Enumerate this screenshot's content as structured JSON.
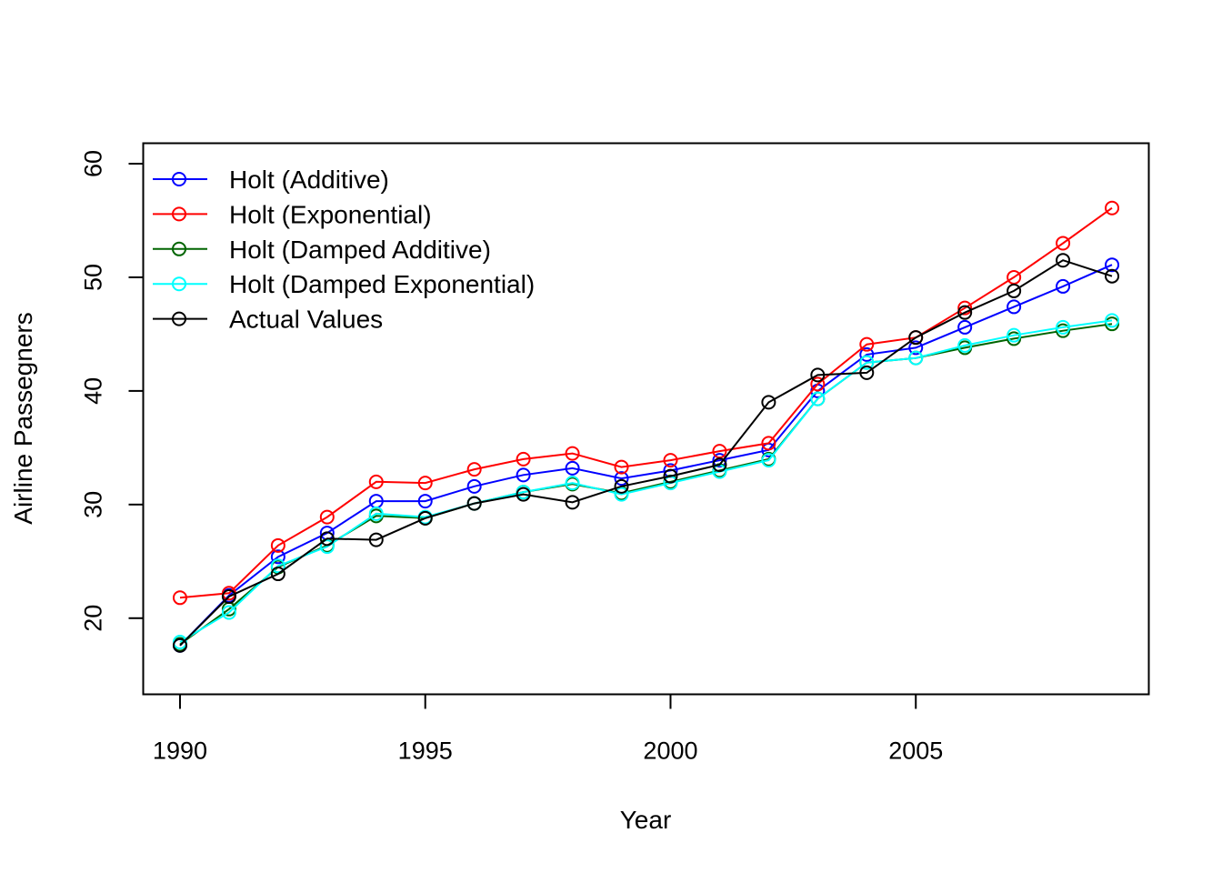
{
  "chart_data": {
    "type": "line",
    "xlabel": "Year",
    "ylabel": "Airline Passegners",
    "xlim": [
      1989.25,
      2009.75
    ],
    "ylim": [
      13.3,
      61.8
    ],
    "x_ticks": [
      1990,
      1995,
      2000,
      2005
    ],
    "x_tick_labels": [
      "1990",
      "1995",
      "2000",
      "2005"
    ],
    "y_ticks": [
      20,
      30,
      40,
      50,
      60
    ],
    "y_tick_labels": [
      "20",
      "30",
      "40",
      "50",
      "60"
    ],
    "legend_position": "top-left",
    "x": [
      1990,
      1991,
      1992,
      1993,
      1994,
      1995,
      1996,
      1997,
      1998,
      1999,
      2000,
      2001,
      2002,
      2003,
      2004,
      2005,
      2006,
      2007,
      2008,
      2009
    ],
    "series": [
      {
        "name": "Holt (Additive)",
        "color": "#0000ff",
        "values": [
          17.6,
          22.0,
          25.4,
          27.5,
          30.3,
          30.3,
          31.6,
          32.6,
          33.2,
          32.3,
          33.0,
          33.9,
          34.8,
          40.0,
          43.2,
          43.8,
          45.6,
          47.4,
          49.2,
          51.1
        ]
      },
      {
        "name": "Holt (Exponential)",
        "color": "#ff0000",
        "values": [
          21.8,
          22.2,
          26.4,
          28.9,
          32.0,
          31.9,
          33.1,
          34.0,
          34.5,
          33.3,
          33.9,
          34.7,
          35.4,
          40.6,
          44.1,
          44.7,
          47.3,
          50.0,
          53.0,
          56.1
        ]
      },
      {
        "name": "Holt (Damped Additive)",
        "color": "#006400",
        "values": [
          17.7,
          20.8,
          24.5,
          26.4,
          29.0,
          28.8,
          30.1,
          31.1,
          31.8,
          31.0,
          32.0,
          33.0,
          34.0,
          39.3,
          42.5,
          42.9,
          43.8,
          44.6,
          45.3,
          45.9
        ]
      },
      {
        "name": "Holt (Damped Exponential)",
        "color": "#00ffff",
        "values": [
          17.9,
          20.5,
          24.6,
          26.3,
          29.2,
          28.9,
          30.1,
          31.1,
          31.9,
          30.9,
          31.9,
          32.9,
          33.9,
          39.3,
          42.5,
          42.9,
          44.0,
          44.9,
          45.6,
          46.2
        ]
      },
      {
        "name": "Actual Values",
        "color": "#000000",
        "values": [
          17.6,
          21.9,
          23.9,
          27.0,
          26.9,
          28.8,
          30.1,
          30.9,
          30.2,
          31.6,
          32.5,
          33.5,
          39.0,
          41.4,
          41.6,
          44.7,
          46.9,
          48.8,
          51.5,
          50.1
        ]
      }
    ]
  }
}
